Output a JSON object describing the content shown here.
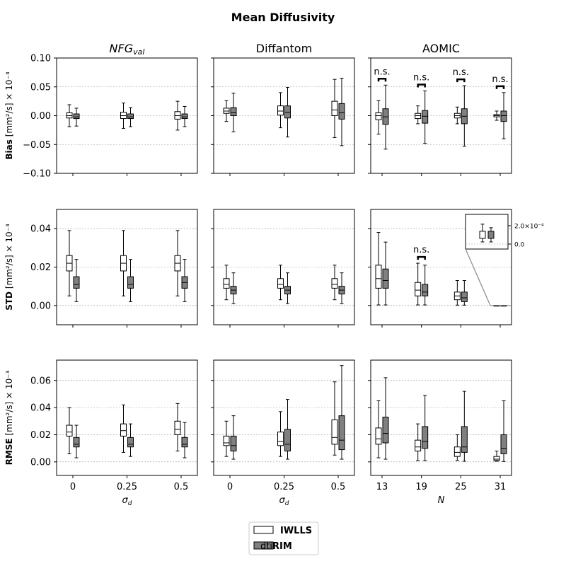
{
  "figure": {
    "title": "Mean Diffusivity",
    "legend": [
      {
        "label_plain": "",
        "label_bold": "IWLLS",
        "fill": "#ffffff"
      },
      {
        "label_plain": "dti",
        "label_bold": "RIM",
        "fill": "#808080"
      }
    ]
  },
  "colors": {
    "iwlls": "#ffffff",
    "dtirim": "#808080",
    "edge": "#000000",
    "grid": "#999999"
  },
  "chart_data": [
    {
      "type": "box",
      "row": 0,
      "col": 0,
      "title": "NFG",
      "title_sub": "val",
      "ylabel_bold": "Bias",
      "ylabel_rest": " [mm²/s] × 10⁻³",
      "ylim": [
        -0.1,
        0.1
      ],
      "yticks": [
        -0.1,
        -0.05,
        0,
        0.05,
        0.1
      ],
      "yticklabels": [
        "−0.10",
        "−0.05",
        "0.00",
        "0.05",
        "0.10"
      ],
      "show_yticklabels": true,
      "grid": true,
      "categories": [
        "0",
        "0.25",
        "0.5"
      ],
      "series": [
        {
          "name": "IWLLS",
          "boxes": [
            [
              -0.019,
              -0.004,
              0.0,
              0.005,
              0.019
            ],
            [
              -0.022,
              -0.005,
              0.0,
              0.006,
              0.022
            ],
            [
              -0.025,
              -0.006,
              0.0,
              0.007,
              0.025
            ]
          ]
        },
        {
          "name": "dtiRIM",
          "boxes": [
            [
              -0.018,
              -0.005,
              -0.002,
              0.003,
              0.013
            ],
            [
              -0.019,
              -0.005,
              -0.002,
              0.003,
              0.014
            ],
            [
              -0.019,
              -0.005,
              -0.002,
              0.003,
              0.016
            ]
          ]
        }
      ],
      "annotations": []
    },
    {
      "type": "box",
      "row": 0,
      "col": 1,
      "title": "Diffantom",
      "title_sub": "",
      "ylim": [
        -0.1,
        0.1
      ],
      "yticks": [
        -0.1,
        -0.05,
        0,
        0.05,
        0.1
      ],
      "show_yticklabels": false,
      "grid": true,
      "categories": [
        "0",
        "0.25",
        "0.5"
      ],
      "series": [
        {
          "name": "IWLLS",
          "boxes": [
            [
              -0.01,
              0.004,
              0.008,
              0.013,
              0.026
            ],
            [
              -0.021,
              0.001,
              0.008,
              0.017,
              0.04
            ],
            [
              -0.038,
              0.0,
              0.01,
              0.025,
              0.063
            ]
          ]
        },
        {
          "name": "dtiRIM",
          "boxes": [
            [
              -0.028,
              0.0,
              0.005,
              0.014,
              0.039
            ],
            [
              -0.037,
              -0.004,
              0.006,
              0.017,
              0.049
            ],
            [
              -0.052,
              -0.006,
              0.005,
              0.021,
              0.065
            ]
          ]
        }
      ],
      "annotations": []
    },
    {
      "type": "box",
      "row": 0,
      "col": 2,
      "title": "AOMIC",
      "title_sub": "",
      "ylim": [
        -0.1,
        0.1
      ],
      "yticks": [
        -0.1,
        -0.05,
        0,
        0.05,
        0.1
      ],
      "show_yticklabels": false,
      "grid": true,
      "categories": [
        "13",
        "19",
        "25",
        "31"
      ],
      "series": [
        {
          "name": "IWLLS",
          "boxes": [
            [
              -0.032,
              -0.007,
              0.0,
              0.005,
              0.026
            ],
            [
              -0.014,
              -0.005,
              0.0,
              0.004,
              0.017
            ],
            [
              -0.014,
              -0.004,
              0.0,
              0.004,
              0.015
            ],
            [
              -0.008,
              -0.002,
              0.0,
              0.002,
              0.008
            ]
          ]
        },
        {
          "name": "dtiRIM",
          "boxes": [
            [
              -0.058,
              -0.015,
              -0.002,
              0.012,
              0.053
            ],
            [
              -0.048,
              -0.013,
              -0.001,
              0.009,
              0.043
            ],
            [
              -0.053,
              -0.014,
              -0.001,
              0.012,
              0.052
            ],
            [
              -0.04,
              -0.01,
              0.0,
              0.008,
              0.04
            ]
          ]
        }
      ],
      "annotations": [
        {
          "at": 0,
          "text": "n.s."
        },
        {
          "at": 1,
          "text": "n.s."
        },
        {
          "at": 2,
          "text": "n.s."
        },
        {
          "at": 3,
          "text": "n.s."
        }
      ]
    },
    {
      "type": "box",
      "row": 1,
      "col": 0,
      "title": "",
      "title_sub": "",
      "ylabel_bold": "STD",
      "ylabel_rest": " [mm²/s] × 10⁻³",
      "ylim": [
        -0.01,
        0.05
      ],
      "yticks": [
        0,
        0.02,
        0.04
      ],
      "yticklabels": [
        "0.00",
        "0.02",
        "0.04"
      ],
      "show_yticklabels": true,
      "grid": true,
      "categories": [
        "0",
        "0.25",
        "0.5"
      ],
      "series": [
        {
          "name": "IWLLS",
          "boxes": [
            [
              0.005,
              0.018,
              0.022,
              0.026,
              0.039
            ],
            [
              0.005,
              0.018,
              0.022,
              0.026,
              0.039
            ],
            [
              0.005,
              0.018,
              0.022,
              0.026,
              0.039
            ]
          ]
        },
        {
          "name": "dtiRIM",
          "boxes": [
            [
              0.002,
              0.009,
              0.011,
              0.015,
              0.024
            ],
            [
              0.002,
              0.009,
              0.011,
              0.015,
              0.024
            ],
            [
              0.002,
              0.009,
              0.012,
              0.015,
              0.024
            ]
          ]
        }
      ],
      "annotations": []
    },
    {
      "type": "box",
      "row": 1,
      "col": 1,
      "title": "",
      "title_sub": "",
      "ylim": [
        -0.01,
        0.05
      ],
      "yticks": [
        0,
        0.02,
        0.04
      ],
      "show_yticklabels": false,
      "grid": true,
      "categories": [
        "0",
        "0.25",
        "0.5"
      ],
      "series": [
        {
          "name": "IWLLS",
          "boxes": [
            [
              0.003,
              0.009,
              0.011,
              0.014,
              0.021
            ],
            [
              0.003,
              0.009,
              0.011,
              0.014,
              0.021
            ],
            [
              0.003,
              0.009,
              0.011,
              0.014,
              0.021
            ]
          ]
        },
        {
          "name": "dtiRIM",
          "boxes": [
            [
              0.001,
              0.006,
              0.008,
              0.01,
              0.017
            ],
            [
              0.001,
              0.006,
              0.008,
              0.01,
              0.017
            ],
            [
              0.001,
              0.006,
              0.008,
              0.01,
              0.017
            ]
          ]
        }
      ],
      "annotations": []
    },
    {
      "type": "box",
      "row": 1,
      "col": 2,
      "title": "",
      "title_sub": "",
      "ylim": [
        -0.01,
        0.05
      ],
      "yticks": [
        0,
        0.02,
        0.04
      ],
      "show_yticklabels": false,
      "grid": true,
      "categories": [
        "13",
        "19",
        "25",
        "31"
      ],
      "series": [
        {
          "name": "IWLLS",
          "boxes": [
            [
              0.0003,
              0.009,
              0.014,
              0.021,
              0.038
            ],
            [
              0.0003,
              0.005,
              0.008,
              0.012,
              0.022
            ],
            [
              0.0002,
              0.003,
              0.005,
              0.007,
              0.013
            ],
            [
              1e-05,
              2e-05,
              3e-05,
              4e-05,
              6e-05
            ]
          ]
        },
        {
          "name": "dtiRIM",
          "boxes": [
            [
              0.0003,
              0.009,
              0.013,
              0.019,
              0.033
            ],
            [
              0.0003,
              0.005,
              0.007,
              0.011,
              0.021
            ],
            [
              0.0002,
              0.002,
              0.004,
              0.007,
              0.013
            ],
            [
              1e-05,
              2e-05,
              3e-05,
              4e-05,
              5e-05
            ]
          ]
        }
      ],
      "annotations": [
        {
          "at": 1,
          "text": "n.s."
        }
      ],
      "inset": {
        "target_category": 3,
        "yticklabels": [
          "2.0×10⁻⁴",
          "0.0"
        ]
      }
    },
    {
      "type": "box",
      "row": 2,
      "col": 0,
      "title": "",
      "title_sub": "",
      "ylabel_bold": "RMSE",
      "ylabel_rest": " [mm²/s] × 10⁻³",
      "ylim": [
        -0.01,
        0.075
      ],
      "yticks": [
        0,
        0.02,
        0.04,
        0.06
      ],
      "yticklabels": [
        "0.00",
        "0.02",
        "0.04",
        "0.06"
      ],
      "show_yticklabels": true,
      "grid": true,
      "categories": [
        "0",
        "0.25",
        "0.5"
      ],
      "xlabel": "σ",
      "xlabel_sub": "d",
      "series": [
        {
          "name": "IWLLS",
          "boxes": [
            [
              0.006,
              0.019,
              0.022,
              0.027,
              0.04
            ],
            [
              0.007,
              0.019,
              0.023,
              0.028,
              0.042
            ],
            [
              0.008,
              0.02,
              0.024,
              0.03,
              0.043
            ]
          ]
        },
        {
          "name": "dtiRIM",
          "boxes": [
            [
              0.003,
              0.011,
              0.013,
              0.018,
              0.027
            ],
            [
              0.004,
              0.011,
              0.013,
              0.018,
              0.028
            ],
            [
              0.003,
              0.011,
              0.013,
              0.018,
              0.029
            ]
          ]
        }
      ],
      "annotations": []
    },
    {
      "type": "box",
      "row": 2,
      "col": 1,
      "title": "",
      "title_sub": "",
      "ylim": [
        -0.01,
        0.075
      ],
      "yticks": [
        0,
        0.02,
        0.04,
        0.06
      ],
      "show_yticklabels": false,
      "grid": true,
      "categories": [
        "0",
        "0.25",
        "0.5"
      ],
      "xlabel": "σ",
      "xlabel_sub": "d",
      "series": [
        {
          "name": "IWLLS",
          "boxes": [
            [
              0.004,
              0.012,
              0.014,
              0.019,
              0.03
            ],
            [
              0.004,
              0.012,
              0.015,
              0.022,
              0.037
            ],
            [
              0.005,
              0.013,
              0.018,
              0.031,
              0.059
            ]
          ]
        },
        {
          "name": "dtiRIM",
          "boxes": [
            [
              0.002,
              0.008,
              0.012,
              0.019,
              0.034
            ],
            [
              0.002,
              0.008,
              0.013,
              0.024,
              0.046
            ],
            [
              0.002,
              0.009,
              0.016,
              0.034,
              0.071
            ]
          ]
        }
      ],
      "annotations": []
    },
    {
      "type": "box",
      "row": 2,
      "col": 2,
      "title": "",
      "title_sub": "",
      "ylim": [
        -0.01,
        0.075
      ],
      "yticks": [
        0,
        0.02,
        0.04,
        0.06
      ],
      "show_yticklabels": false,
      "grid": true,
      "categories": [
        "13",
        "19",
        "25",
        "31"
      ],
      "xlabel": "N",
      "xlabel_sub": "",
      "series": [
        {
          "name": "IWLLS",
          "boxes": [
            [
              0.003,
              0.013,
              0.017,
              0.025,
              0.045
            ],
            [
              0.001,
              0.008,
              0.011,
              0.016,
              0.028
            ],
            [
              0.001,
              0.004,
              0.007,
              0.011,
              0.02
            ],
            [
              0.0005,
              0.001,
              0.002,
              0.004,
              0.008
            ]
          ]
        },
        {
          "name": "dtiRIM",
          "boxes": [
            [
              0.002,
              0.014,
              0.021,
              0.033,
              0.062
            ],
            [
              0.001,
              0.01,
              0.015,
              0.026,
              0.049
            ],
            [
              0.0005,
              0.007,
              0.011,
              0.026,
              0.052
            ],
            [
              0.0003,
              0.006,
              0.01,
              0.02,
              0.045
            ]
          ]
        }
      ],
      "annotations": []
    }
  ]
}
